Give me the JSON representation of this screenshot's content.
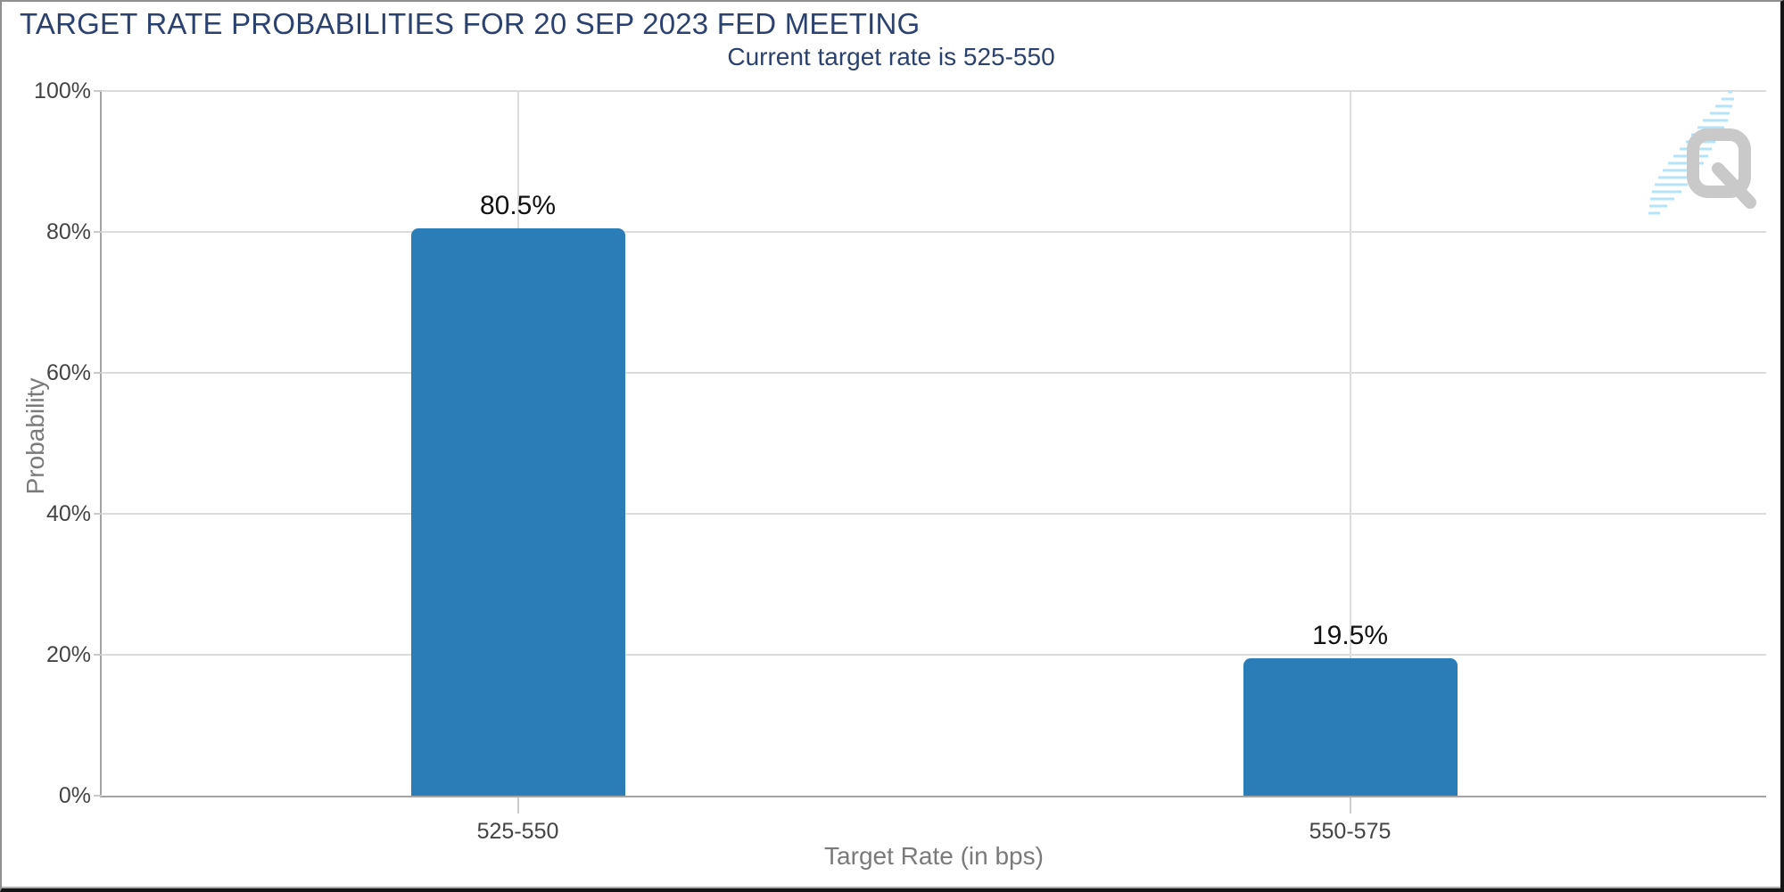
{
  "header": {
    "title": "TARGET RATE PROBABILITIES FOR 20 SEP 2023 FED MEETING",
    "subtitle": "Current target rate is 525-550"
  },
  "chart_data": {
    "type": "bar",
    "title": "TARGET RATE PROBABILITIES FOR 20 SEP 2023 FED MEETING",
    "subtitle": "Current target rate is 525-550",
    "categories": [
      "525-550",
      "550-575"
    ],
    "values": [
      80.5,
      19.5
    ],
    "value_labels": [
      "80.5%",
      "19.5%"
    ],
    "xlabel": "Target Rate (in bps)",
    "ylabel": "Probability",
    "ylim": [
      0,
      100
    ],
    "ytick_interval": 20,
    "ytick_labels": [
      "0%",
      "20%",
      "40%",
      "60%",
      "80%",
      "100%"
    ],
    "grid": true,
    "legend_position": "none",
    "bar_color": "#2b7db8"
  },
  "watermark": {
    "letter": "Q"
  },
  "colors": {
    "background": "#ffffff",
    "title_text": "#2b416f",
    "bar": "#2b7db8",
    "axis_text": "#444444",
    "muted_text": "#7a7a7a",
    "value_text": "#111111",
    "gridline": "#dcdcdc",
    "axis_line": "#a3a3a3",
    "watermark_letter": "#c9c9c9",
    "watermark_stripes": "#b5e4f8"
  }
}
